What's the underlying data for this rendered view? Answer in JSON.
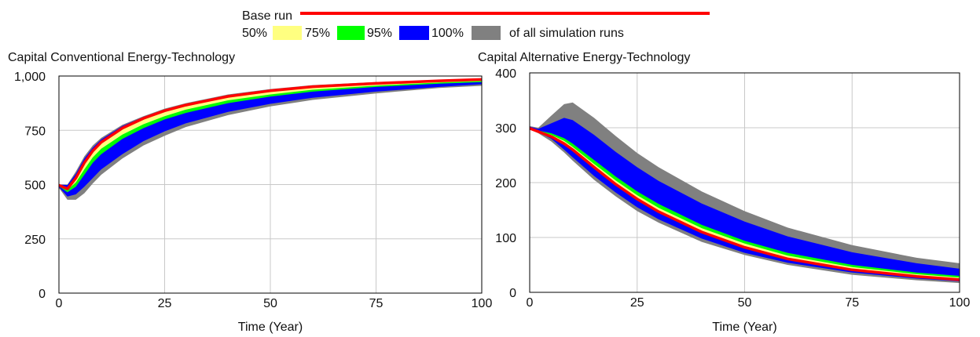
{
  "legend": {
    "base_label": "Base run",
    "items": [
      {
        "label": "50%",
        "color": "#ffff80"
      },
      {
        "label": "75%",
        "color": "#00ff00"
      },
      {
        "label": "95%",
        "color": "#0000ff"
      },
      {
        "label": "100%",
        "color": "#808080"
      }
    ],
    "suffix": "of all simulation runs",
    "base_color": "#ff0000"
  },
  "chart_data": [
    {
      "type": "area",
      "title": "Capital Conventional Energy-Technology",
      "xlabel": "Time (Year)",
      "ylabel": "",
      "xlim": [
        0,
        100
      ],
      "ylim": [
        0,
        1000
      ],
      "xticks": [
        "0",
        "25",
        "50",
        "75",
        "100"
      ],
      "yticks": [
        "0",
        "250",
        "500",
        "750",
        "1,000"
      ],
      "grid": true,
      "x": [
        0,
        2,
        4,
        6,
        8,
        10,
        15,
        20,
        25,
        30,
        40,
        50,
        60,
        75,
        90,
        100
      ],
      "bands": [
        {
          "name": "100%",
          "color": "#808080",
          "lower": [
            485,
            430,
            430,
            460,
            505,
            545,
            620,
            680,
            725,
            765,
            820,
            860,
            890,
            920,
            945,
            955
          ],
          "upper": [
            500,
            500,
            560,
            630,
            680,
            715,
            775,
            815,
            850,
            875,
            915,
            940,
            958,
            972,
            982,
            988
          ]
        },
        {
          "name": "95%",
          "color": "#0000ff",
          "lower": [
            488,
            445,
            455,
            490,
            530,
            570,
            640,
            700,
            745,
            782,
            835,
            872,
            900,
            928,
            950,
            962
          ],
          "upper": [
            500,
            498,
            550,
            620,
            670,
            708,
            770,
            812,
            846,
            872,
            912,
            938,
            956,
            970,
            980,
            986
          ]
        },
        {
          "name": "75%",
          "color": "#00ff00",
          "lower": [
            492,
            465,
            490,
            545,
            600,
            640,
            710,
            760,
            800,
            830,
            875,
            905,
            928,
            950,
            965,
            972
          ]
        },
        {
          "name": "50%",
          "color": "#ffff80",
          "lower": [
            495,
            475,
            510,
            570,
            625,
            665,
            730,
            778,
            815,
            845,
            888,
            915,
            937,
            956,
            970,
            977
          ]
        }
      ],
      "base_run": [
        497,
        480,
        530,
        600,
        655,
        695,
        760,
        805,
        840,
        866,
        906,
        932,
        951,
        966,
        978,
        984
      ]
    },
    {
      "type": "area",
      "title": "Capital Alternative Energy-Technology",
      "xlabel": "Time (Year)",
      "ylabel": "",
      "xlim": [
        0,
        100
      ],
      "ylim": [
        0,
        400
      ],
      "xticks": [
        "0",
        "25",
        "50",
        "75",
        "100"
      ],
      "yticks": [
        "0",
        "100",
        "200",
        "300",
        "400"
      ],
      "grid": true,
      "x": [
        0,
        2,
        5,
        8,
        10,
        15,
        20,
        25,
        30,
        40,
        50,
        60,
        75,
        90,
        100
      ],
      "bands": [
        {
          "name": "100%",
          "color": "#808080",
          "lower": [
            297,
            290,
            275,
            255,
            240,
            205,
            175,
            148,
            127,
            92,
            68,
            50,
            32,
            22,
            17
          ],
          "upper": [
            303,
            300,
            322,
            343,
            346,
            318,
            285,
            254,
            228,
            184,
            148,
            118,
            86,
            63,
            53
          ]
        },
        {
          "name": "95%",
          "color": "#0000ff",
          "lower": [
            297,
            292,
            280,
            260,
            246,
            212,
            182,
            155,
            133,
            98,
            72,
            54,
            36,
            25,
            20
          ],
          "upper": [
            302,
            298,
            308,
            318,
            314,
            287,
            256,
            228,
            203,
            162,
            129,
            102,
            73,
            53,
            43
          ]
        },
        {
          "name": "75%",
          "color": "#00ff00",
          "upper": [
            301,
            295,
            290,
            281,
            271,
            241,
            211,
            184,
            161,
            123,
            94,
            72,
            50,
            36,
            30
          ]
        },
        {
          "name": "50%",
          "color": "#ffff80",
          "upper": [
            300,
            294,
            287,
            276,
            265,
            234,
            204,
            177,
            154,
            117,
            89,
            67,
            46,
            33,
            27
          ]
        }
      ],
      "base_run": [
        299,
        293,
        284,
        271,
        260,
        228,
        197,
        170,
        147,
        110,
        82,
        61,
        41,
        29,
        23
      ]
    }
  ]
}
